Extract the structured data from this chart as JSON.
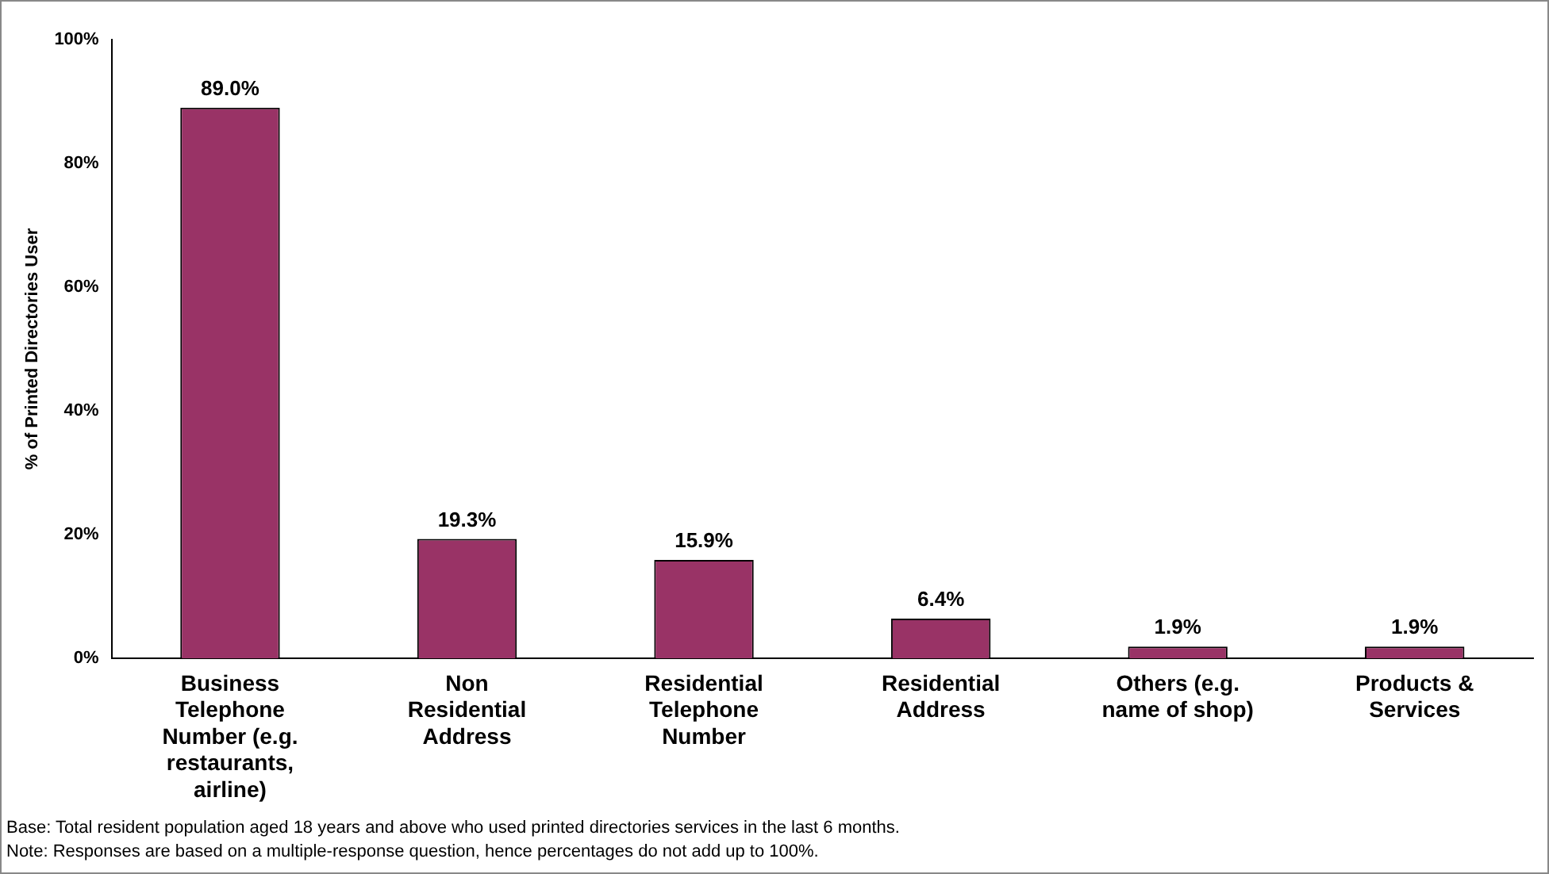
{
  "chart_data": {
    "type": "bar",
    "ylabel": "% of Printed Directories User",
    "categories": [
      "Business Telephone Number (e.g. restaurants, airline)",
      "Non Residential Address",
      "Residential Telephone Number",
      "Residential Address",
      "Others (e.g. name of shop)",
      "Products & Services"
    ],
    "values": [
      89.0,
      19.3,
      15.9,
      6.4,
      1.9,
      1.9
    ],
    "value_labels": [
      "89.0%",
      "19.3%",
      "15.9%",
      "6.4%",
      "1.9%",
      "1.9%"
    ],
    "color": "#993366",
    "ylim": [
      0,
      100
    ],
    "yticks": [
      {
        "value": 0,
        "label": "0%"
      },
      {
        "value": 20,
        "label": "20%"
      },
      {
        "value": 40,
        "label": "40%"
      },
      {
        "value": 60,
        "label": "60%"
      },
      {
        "value": 80,
        "label": "80%"
      },
      {
        "value": 100,
        "label": "100%"
      }
    ],
    "grid": false,
    "legend": false,
    "annotations": [
      "Base: Total resident population aged 18 years and above who used printed directories services in the last 6 months.",
      "Note: Responses are based on a multiple-response question, hence percentages do not add up to 100%."
    ]
  }
}
